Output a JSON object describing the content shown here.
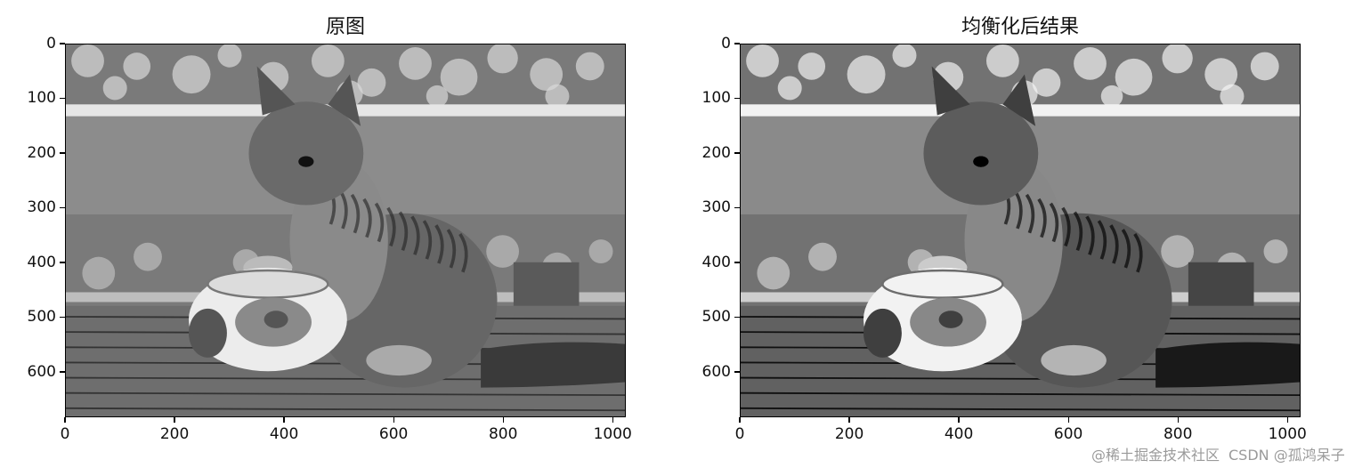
{
  "figure": {
    "panels": [
      {
        "title": "原图",
        "xticks": [
          0,
          200,
          400,
          600,
          800,
          1000
        ],
        "yticks": [
          0,
          100,
          200,
          300,
          400,
          500,
          600
        ],
        "image_extent": [
          1024,
          683
        ],
        "style": "original"
      },
      {
        "title": "均衡化后结果",
        "xticks": [
          0,
          200,
          400,
          600,
          800,
          1000
        ],
        "yticks": [
          0,
          100,
          200,
          300,
          400,
          500,
          600
        ],
        "image_extent": [
          1024,
          683
        ],
        "style": "equalized"
      }
    ],
    "image_content": "grayscale-kitten-with-ceramic-pot"
  },
  "watermark": {
    "line1": "@稀土掘金技术社区",
    "line2": "CSDN @孤鸿呆子"
  }
}
